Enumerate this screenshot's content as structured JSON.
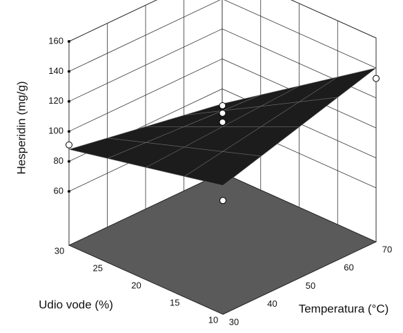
{
  "chart_data": {
    "type": "surface3d",
    "zlabel": "Hesperidin (mg/g)",
    "ylabel": "Udio vode (%)",
    "xlabel": "Temperatura (°C)",
    "x": [
      30,
      40,
      50,
      60,
      70
    ],
    "y": [
      10,
      15,
      20,
      25,
      30
    ],
    "z": [
      [
        110,
        117.5,
        125,
        132.5,
        140
      ],
      [
        104.5,
        109,
        113.5,
        118,
        122.5
      ],
      [
        99,
        100.5,
        102,
        103.5,
        105
      ],
      [
        93.5,
        92,
        90.5,
        89,
        87.5
      ],
      [
        88,
        83.5,
        79,
        74.5,
        70
      ]
    ],
    "xlim": [
      30,
      70
    ],
    "ylim": [
      10,
      30
    ],
    "zlim": [
      60,
      160
    ],
    "xticks": [
      30,
      40,
      50,
      60,
      70
    ],
    "yticks": [
      10,
      15,
      20,
      25,
      30
    ],
    "zticks": [
      60,
      80,
      100,
      120,
      140,
      160
    ],
    "points": {
      "x": [
        30,
        70,
        50,
        50,
        50,
        30
      ],
      "y": [
        30,
        10,
        20,
        20,
        20,
        10
      ],
      "z": [
        91,
        133,
        116,
        111,
        105,
        100
      ]
    },
    "surface_color": "#1c1c1c",
    "floor_color": "#5a5a5a",
    "grid": true
  }
}
